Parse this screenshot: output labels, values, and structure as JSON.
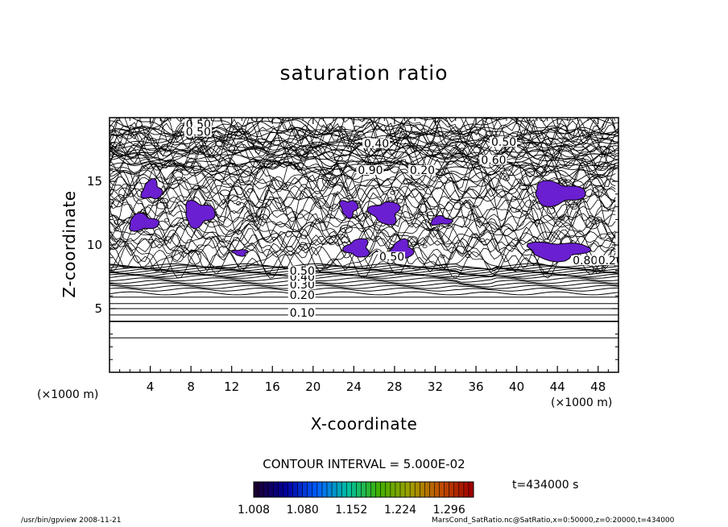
{
  "chart_data": {
    "type": "contour",
    "title": "saturation ratio",
    "xlabel": "X-coordinate",
    "ylabel": "Z-coordinate",
    "x_unit": "(×1000 m)",
    "y_unit": "(×1000 m)",
    "xlim": [
      0,
      50
    ],
    "ylim": [
      0,
      20
    ],
    "x_ticks": [
      4,
      8,
      12,
      16,
      20,
      24,
      28,
      32,
      36,
      40,
      44,
      48
    ],
    "y_ticks": [
      5,
      10,
      15
    ],
    "x_tick_labels": [
      "4",
      "8",
      "12",
      "16",
      "20",
      "24",
      "28",
      "32",
      "36",
      "40",
      "44",
      "48"
    ],
    "y_tick_labels": [
      "5",
      "10",
      "15"
    ],
    "contour_interval_text": "CONTOUR INTERVAL = 5.000E-02",
    "contour_labels": [
      {
        "text": "0.10",
        "x": 17.7,
        "z": 4.5
      },
      {
        "text": "0.20",
        "x": 17.7,
        "z": 5.9
      },
      {
        "text": "0.30",
        "x": 17.7,
        "z": 6.7
      },
      {
        "text": "0.40",
        "x": 17.7,
        "z": 7.3
      },
      {
        "text": "0.50",
        "x": 17.7,
        "z": 7.8
      },
      {
        "text": "0.50",
        "x": 7.5,
        "z": 19.3
      },
      {
        "text": "0.50",
        "x": 7.5,
        "z": 18.7
      },
      {
        "text": "0.40",
        "x": 25.0,
        "z": 17.8
      },
      {
        "text": "0.50",
        "x": 37.5,
        "z": 17.9
      },
      {
        "text": "0.60",
        "x": 36.5,
        "z": 16.5
      },
      {
        "text": "0.90",
        "x": 24.4,
        "z": 15.7
      },
      {
        "text": "0.20",
        "x": 29.5,
        "z": 15.7
      },
      {
        "text": "0.50",
        "x": 26.5,
        "z": 8.9
      },
      {
        "text": "0.80",
        "x": 45.5,
        "z": 8.6
      },
      {
        "text": "0.20",
        "x": 48.0,
        "z": 8.6
      }
    ],
    "supersaturated_regions": [
      {
        "x": [
          3,
          5.3
        ],
        "z": [
          13.4,
          15.2
        ]
      },
      {
        "x": [
          1.5,
          5
        ],
        "z": [
          11,
          12.5
        ]
      },
      {
        "x": [
          7,
          10.5
        ],
        "z": [
          11.3,
          13.6
        ]
      },
      {
        "x": [
          22.5,
          24.5
        ],
        "z": [
          12.1,
          13.7
        ]
      },
      {
        "x": [
          25.4,
          28.8
        ],
        "z": [
          11.5,
          13.6
        ]
      },
      {
        "x": [
          23,
          25.8
        ],
        "z": [
          8.9,
          10.6
        ]
      },
      {
        "x": [
          27.4,
          30
        ],
        "z": [
          8.8,
          10.5
        ]
      },
      {
        "x": [
          31.3,
          33.8
        ],
        "z": [
          11.5,
          12.3
        ]
      },
      {
        "x": [
          41,
          47
        ],
        "z": [
          13,
          15.1
        ]
      },
      {
        "x": [
          40.5,
          47.5
        ],
        "z": [
          8.7,
          10.4
        ]
      },
      {
        "x": [
          12,
          13.7
        ],
        "z": [
          9.1,
          9.7
        ]
      }
    ],
    "colorbar": {
      "min": 1.008,
      "max": 1.332,
      "tick_labels": [
        "1.008",
        "1.080",
        "1.152",
        "1.224",
        "1.296"
      ],
      "colormap": [
        "#1a0030",
        "#0000a0",
        "#0060ff",
        "#00c0a0",
        "#40b000",
        "#a0a000",
        "#c05000",
        "#a00000"
      ]
    },
    "time_label": "t=434000 s",
    "fill_color": "#6a1fd0"
  },
  "footer": {
    "left": "/usr/bin/gpview   2008-11-21",
    "right": "MarsCond_SatRatio.nc@SatRatio,x=0:50000,z=0:20000,t=434000"
  }
}
